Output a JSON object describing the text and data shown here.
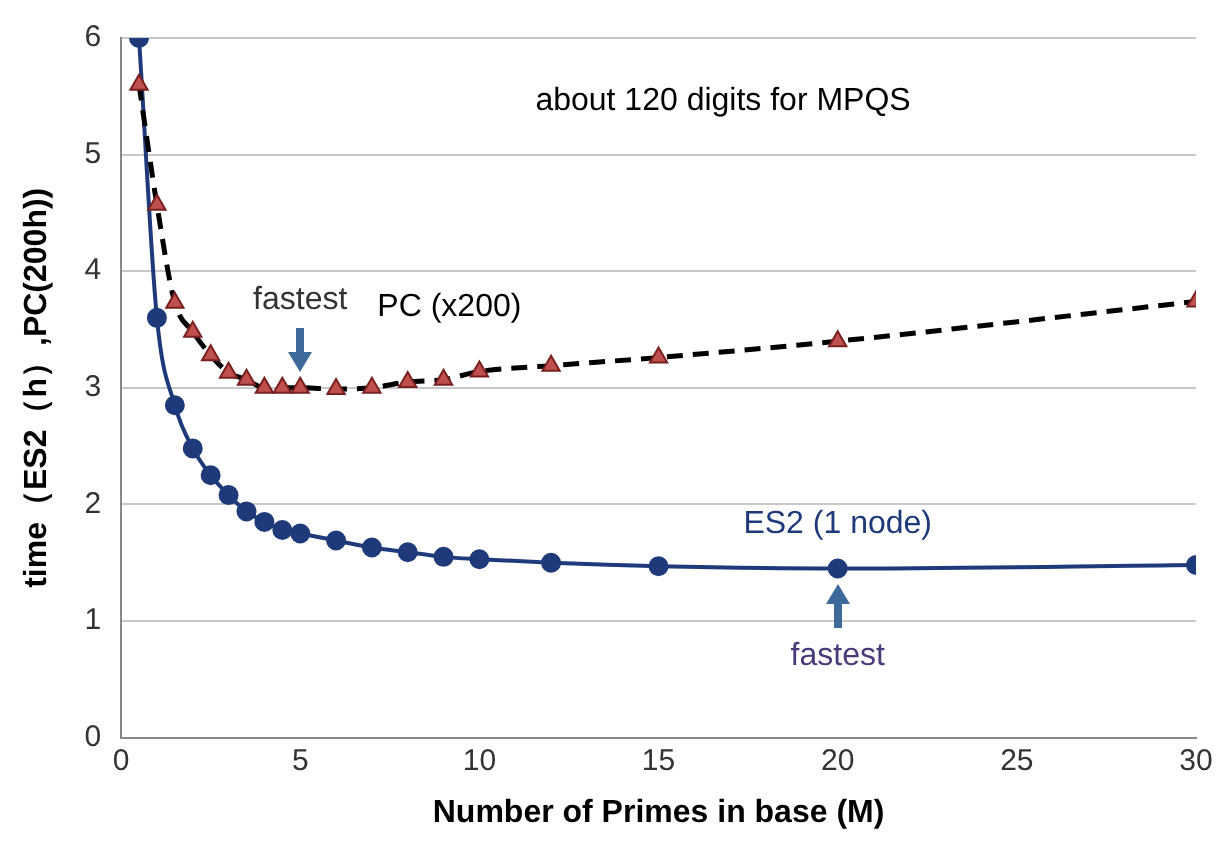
{
  "chart_data": {
    "type": "line",
    "xlabel": "Number of Primes in base (M)",
    "ylabel": "time（ES2（h）,PC(200h))",
    "xlim": [
      0,
      30
    ],
    "xticks": [
      0,
      5,
      10,
      15,
      20,
      25,
      30
    ],
    "ylim": [
      0,
      6
    ],
    "yticks": [
      0,
      1,
      2,
      3,
      4,
      5,
      6
    ],
    "grid": "y",
    "legend": false,
    "annotations": [
      "about 120 digits for MPQS",
      {
        "text": "fastest",
        "x": 5,
        "y": 3.0
      },
      {
        "text": "fastest",
        "x": 20,
        "y": 1.45
      }
    ],
    "series": [
      {
        "name": "PC (x200)",
        "color": "#c0504d",
        "marker": "triangle",
        "line_style": "dashed",
        "x": [
          0.5,
          1,
          1.5,
          2,
          2.5,
          3,
          3.5,
          4,
          4.5,
          5,
          6,
          7,
          8,
          9,
          10,
          12,
          15,
          20,
          30
        ],
        "values": [
          5.6,
          4.57,
          3.73,
          3.48,
          3.28,
          3.13,
          3.07,
          3.0,
          3.0,
          3.0,
          2.99,
          3.0,
          3.05,
          3.07,
          3.14,
          3.19,
          3.26,
          3.4,
          3.74
        ]
      },
      {
        "name": "ES2 (1 node)",
        "color": "#1f3a7a",
        "marker": "circle",
        "line_style": "solid",
        "x": [
          0.5,
          1,
          1.5,
          2,
          2.5,
          3,
          3.5,
          4,
          4.5,
          5,
          6,
          7,
          8,
          9,
          10,
          12,
          15,
          20,
          30
        ],
        "values": [
          6.0,
          3.6,
          2.85,
          2.48,
          2.25,
          2.08,
          1.94,
          1.85,
          1.78,
          1.75,
          1.69,
          1.63,
          1.59,
          1.55,
          1.53,
          1.5,
          1.47,
          1.45,
          1.48
        ]
      }
    ]
  }
}
